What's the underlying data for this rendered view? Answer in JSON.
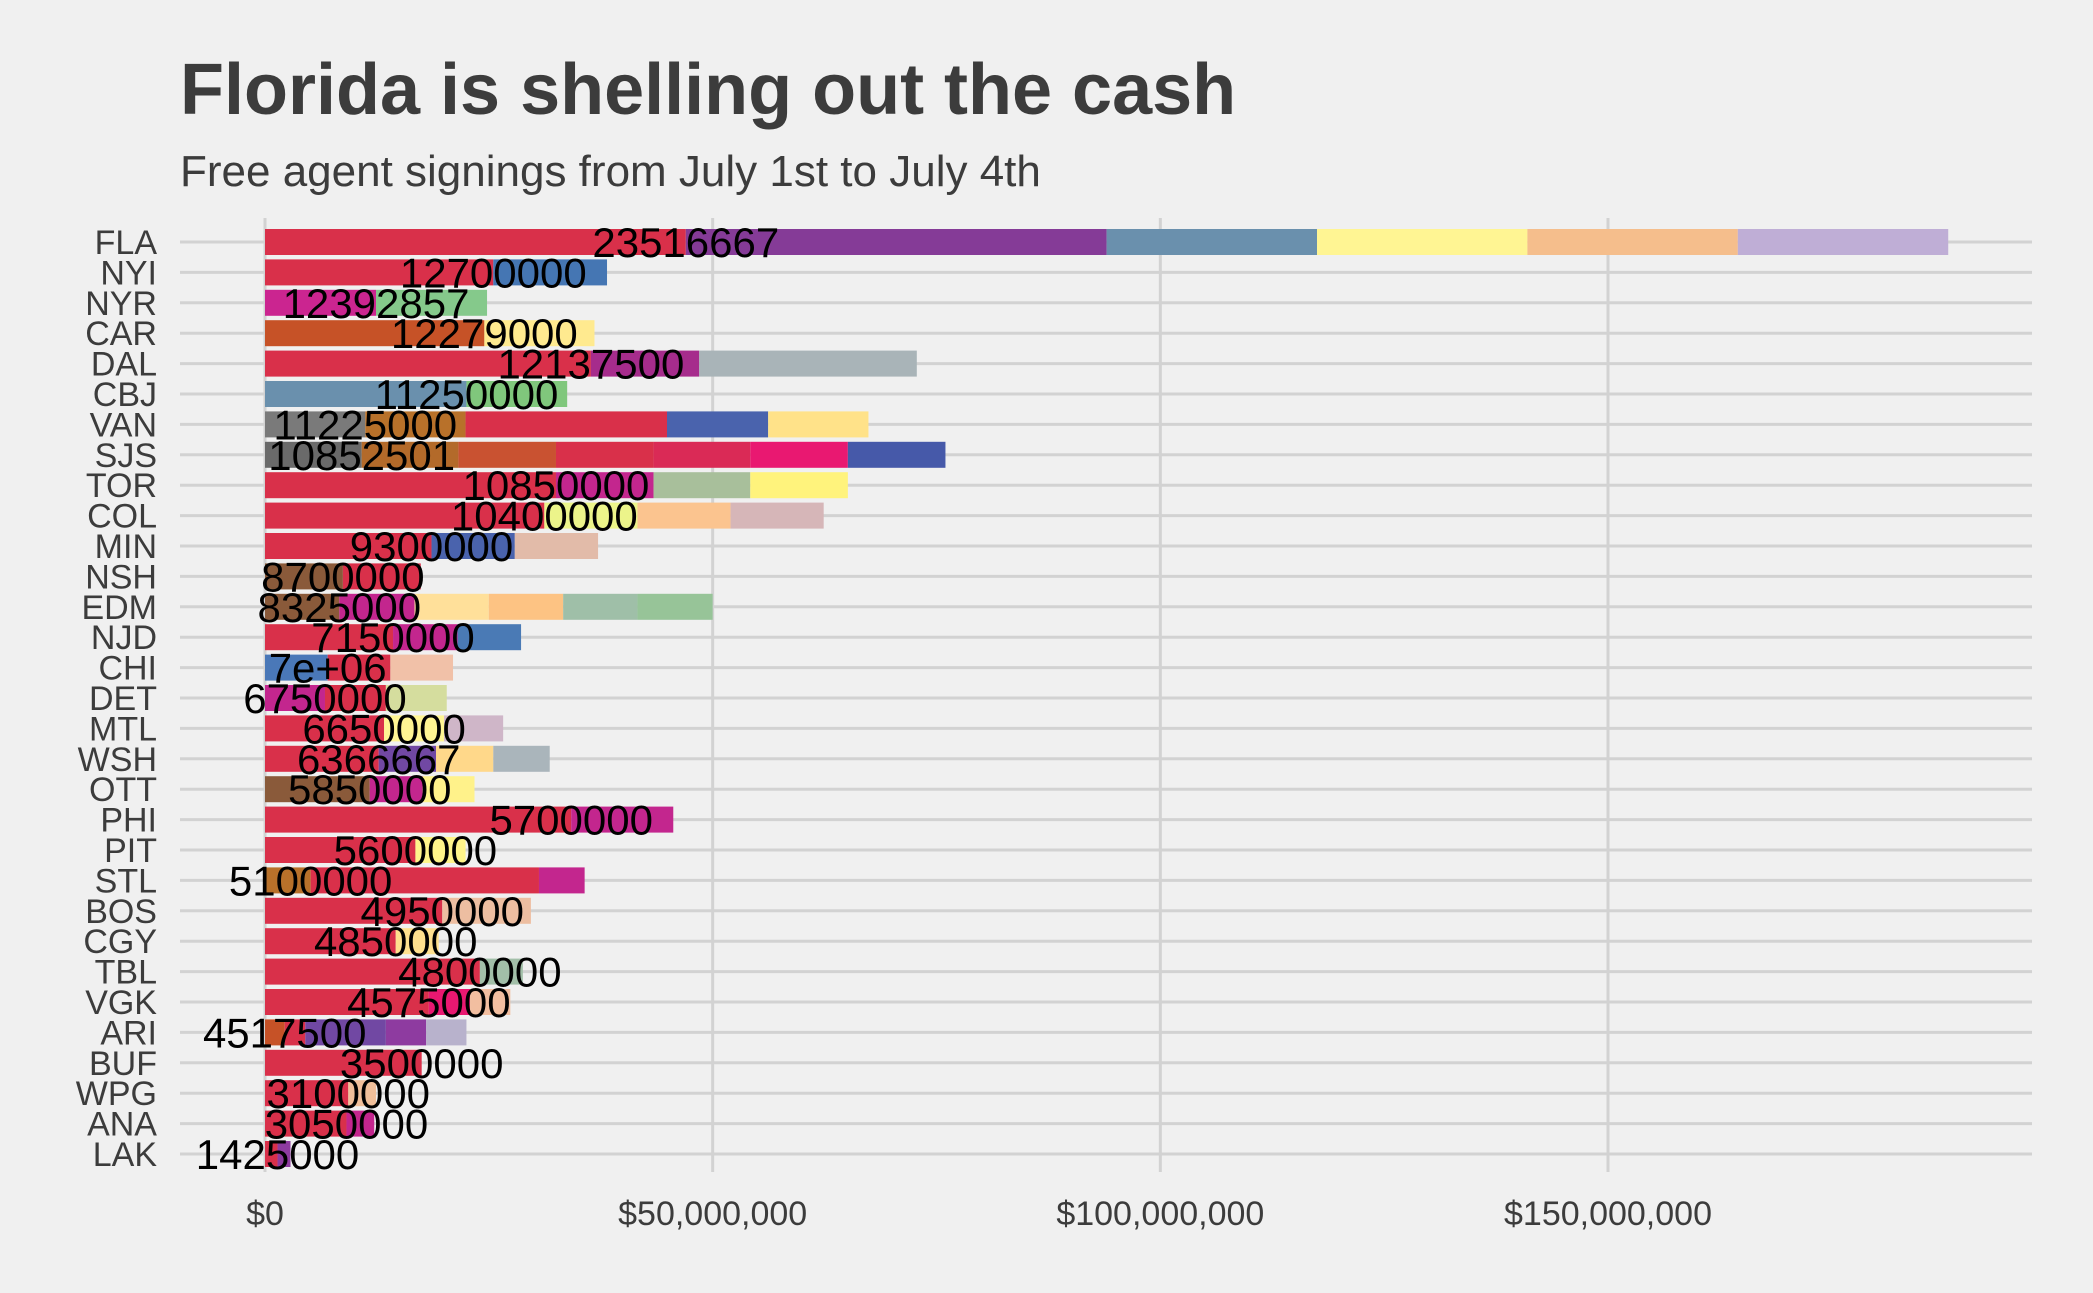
{
  "chart_data": {
    "type": "bar",
    "orientation": "horizontal",
    "stacked": true,
    "title": "Florida is shelling out the cash",
    "subtitle": "Free agent signings from July 1st to July 4th",
    "xlim": [
      0,
      190000000
    ],
    "x_ticks": [
      {
        "value": 0,
        "label": "$0"
      },
      {
        "value": 50000000,
        "label": "$50,000,000"
      },
      {
        "value": 100000000,
        "label": "$100,000,000"
      },
      {
        "value": 150000000,
        "label": "$150,000,000"
      }
    ],
    "grid": true,
    "teams": [
      {
        "team": "FLA",
        "label": "23516667",
        "segments": [
          {
            "value": 47000000,
            "color": "#d9304a"
          },
          {
            "value": 47000000,
            "color": "#853b97"
          },
          {
            "value": 23500000,
            "color": "#6a90ad"
          },
          {
            "value": 23500000,
            "color": "#fff593"
          },
          {
            "value": 23500000,
            "color": "#f5be8c"
          },
          {
            "value": 23500000,
            "color": "#bfaed6"
          }
        ]
      },
      {
        "team": "NYI",
        "label": "12700000",
        "segments": [
          {
            "value": 25500000,
            "color": "#d9304a"
          },
          {
            "value": 12700000,
            "color": "#4576b3"
          }
        ]
      },
      {
        "team": "NYR",
        "label": "12392857",
        "segments": [
          {
            "value": 12400000,
            "color": "#cb2590"
          },
          {
            "value": 12400000,
            "color": "#85c98b"
          }
        ]
      },
      {
        "team": "CAR",
        "label": "12279000",
        "segments": [
          {
            "value": 24500000,
            "color": "#c65227"
          },
          {
            "value": 12300000,
            "color": "#ffea8f"
          }
        ]
      },
      {
        "team": "DAL",
        "label": "12137500",
        "segments": [
          {
            "value": 36400000,
            "color": "#d9304a"
          },
          {
            "value": 12100000,
            "color": "#a62c8c"
          },
          {
            "value": 24300000,
            "color": "#a9b4b8"
          }
        ]
      },
      {
        "team": "CBJ",
        "label": "11250000",
        "segments": [
          {
            "value": 22500000,
            "color": "#6a90ad"
          },
          {
            "value": 11250000,
            "color": "#80c77c"
          }
        ]
      },
      {
        "team": "VAN",
        "label": "11225000",
        "segments": [
          {
            "value": 11200000,
            "color": "#7a7a7a"
          },
          {
            "value": 11200000,
            "color": "#b8712a"
          },
          {
            "value": 22500000,
            "color": "#d9304a"
          },
          {
            "value": 11300000,
            "color": "#4a63ad"
          },
          {
            "value": 11200000,
            "color": "#ffe289"
          }
        ]
      },
      {
        "team": "SJS",
        "label": "10852501",
        "segments": [
          {
            "value": 10800000,
            "color": "#6a6a6a"
          },
          {
            "value": 10800000,
            "color": "#b36a2a"
          },
          {
            "value": 10900000,
            "color": "#c95231"
          },
          {
            "value": 10900000,
            "color": "#d9304a"
          },
          {
            "value": 10800000,
            "color": "#da2a56"
          },
          {
            "value": 10900000,
            "color": "#e91871"
          },
          {
            "value": 10900000,
            "color": "#4659a9"
          }
        ]
      },
      {
        "team": "TOR",
        "label": "10850000",
        "segments": [
          {
            "value": 32500000,
            "color": "#d9304a"
          },
          {
            "value": 10900000,
            "color": "#c3268e"
          },
          {
            "value": 10800000,
            "color": "#a8bf9b"
          },
          {
            "value": 10900000,
            "color": "#fff37c"
          }
        ]
      },
      {
        "team": "COL",
        "label": "10400000",
        "segments": [
          {
            "value": 31200000,
            "color": "#d9304a"
          },
          {
            "value": 10400000,
            "color": "#ecf48a"
          },
          {
            "value": 10400000,
            "color": "#fbc48f"
          },
          {
            "value": 10400000,
            "color": "#d6b6b8"
          }
        ]
      },
      {
        "team": "MIN",
        "label": "9300000",
        "segments": [
          {
            "value": 18600000,
            "color": "#d9304a"
          },
          {
            "value": 9300000,
            "color": "#4a63ad"
          },
          {
            "value": 9300000,
            "color": "#e2bba9"
          }
        ]
      },
      {
        "team": "NSH",
        "label": "8700000",
        "segments": [
          {
            "value": 8700000,
            "color": "#8a5a3a"
          },
          {
            "value": 8700000,
            "color": "#d9304a"
          }
        ]
      },
      {
        "team": "EDM",
        "label": "8325000",
        "segments": [
          {
            "value": 8300000,
            "color": "#8a5a3a"
          },
          {
            "value": 8400000,
            "color": "#c3268e"
          },
          {
            "value": 8300000,
            "color": "#ffe09a"
          },
          {
            "value": 8300000,
            "color": "#fdc383"
          },
          {
            "value": 8300000,
            "color": "#9fbfa8"
          },
          {
            "value": 8400000,
            "color": "#97c498"
          }
        ]
      },
      {
        "team": "NJD",
        "label": "7150000",
        "segments": [
          {
            "value": 14300000,
            "color": "#d9304a"
          },
          {
            "value": 7200000,
            "color": "#c3268e"
          },
          {
            "value": 7100000,
            "color": "#4a7ab5"
          }
        ]
      },
      {
        "team": "CHI",
        "label": "7e+06",
        "segments": [
          {
            "value": 7000000,
            "color": "#4a78b8"
          },
          {
            "value": 7000000,
            "color": "#d9304a"
          },
          {
            "value": 7000000,
            "color": "#f1c1a8"
          }
        ]
      },
      {
        "team": "DET",
        "label": "6750000",
        "segments": [
          {
            "value": 6700000,
            "color": "#c3268e"
          },
          {
            "value": 6800000,
            "color": "#d9304a"
          },
          {
            "value": 6800000,
            "color": "#d5dd9e"
          }
        ]
      },
      {
        "team": "MTL",
        "label": "6650000",
        "segments": [
          {
            "value": 13300000,
            "color": "#d9304a"
          },
          {
            "value": 6700000,
            "color": "#fff593"
          },
          {
            "value": 6600000,
            "color": "#cfb6c8"
          }
        ]
      },
      {
        "team": "WSH",
        "label": "6366667",
        "segments": [
          {
            "value": 12700000,
            "color": "#d9304a"
          },
          {
            "value": 6400000,
            "color": "#7148a3"
          },
          {
            "value": 6400000,
            "color": "#ffd88a"
          },
          {
            "value": 6300000,
            "color": "#aab5bb"
          }
        ]
      },
      {
        "team": "OTT",
        "label": "5850000",
        "segments": [
          {
            "value": 11700000,
            "color": "#8a5a3a"
          },
          {
            "value": 5900000,
            "color": "#c3268e"
          },
          {
            "value": 5800000,
            "color": "#fff28a"
          }
        ]
      },
      {
        "team": "PHI",
        "label": "5700000",
        "segments": [
          {
            "value": 34200000,
            "color": "#d9304a"
          },
          {
            "value": 11400000,
            "color": "#c3268e"
          }
        ]
      },
      {
        "team": "PIT",
        "label": "5600000",
        "segments": [
          {
            "value": 16800000,
            "color": "#d9304a"
          },
          {
            "value": 5600000,
            "color": "#fff48a"
          }
        ]
      },
      {
        "team": "STL",
        "label": "5100000",
        "segments": [
          {
            "value": 5100000,
            "color": "#b8712a"
          },
          {
            "value": 25500000,
            "color": "#d9304a"
          },
          {
            "value": 5100000,
            "color": "#c3268e"
          }
        ]
      },
      {
        "team": "BOS",
        "label": "4950000",
        "segments": [
          {
            "value": 19800000,
            "color": "#d9304a"
          },
          {
            "value": 9900000,
            "color": "#edbea1"
          }
        ]
      },
      {
        "team": "CGY",
        "label": "4850000",
        "segments": [
          {
            "value": 14600000,
            "color": "#d9304a"
          },
          {
            "value": 4800000,
            "color": "#ffe08e"
          }
        ]
      },
      {
        "team": "TBL",
        "label": "4800000",
        "segments": [
          {
            "value": 24000000,
            "color": "#d9304a"
          },
          {
            "value": 4800000,
            "color": "#a2bfa8"
          }
        ]
      },
      {
        "team": "VGK",
        "label": "4575000",
        "segments": [
          {
            "value": 18300000,
            "color": "#d9304a"
          },
          {
            "value": 4600000,
            "color": "#e91871"
          },
          {
            "value": 4500000,
            "color": "#f2bea0"
          }
        ]
      },
      {
        "team": "ARI",
        "label": "4517500",
        "segments": [
          {
            "value": 2200000,
            "color": "#c65227"
          },
          {
            "value": 2300000,
            "color": "#d9304a"
          },
          {
            "value": 9000000,
            "color": "#7148a3"
          },
          {
            "value": 4500000,
            "color": "#8e3ba0"
          },
          {
            "value": 4500000,
            "color": "#b8b2cc"
          }
        ]
      },
      {
        "team": "BUF",
        "label": "3500000",
        "segments": [
          {
            "value": 17500000,
            "color": "#d9304a"
          }
        ]
      },
      {
        "team": "WPG",
        "label": "3100000",
        "segments": [
          {
            "value": 9300000,
            "color": "#d9304a"
          },
          {
            "value": 3100000,
            "color": "#f0bf9a"
          }
        ]
      },
      {
        "team": "ANA",
        "label": "3050000",
        "segments": [
          {
            "value": 9100000,
            "color": "#d9304a"
          },
          {
            "value": 3100000,
            "color": "#c3268e"
          }
        ]
      },
      {
        "team": "LAK",
        "label": "1425000",
        "segments": [
          {
            "value": 1400000,
            "color": "#d9304a"
          },
          {
            "value": 1450000,
            "color": "#8e3ba0"
          }
        ]
      }
    ]
  }
}
